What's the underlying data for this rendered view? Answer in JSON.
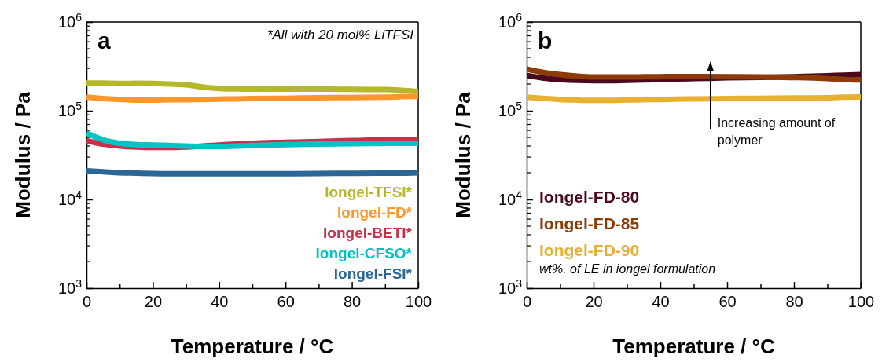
{
  "chart_data": [
    {
      "type": "line",
      "annotations": [
        "a",
        "*All with 20 mol% LiTFSI"
      ],
      "xlabel": "Temperature / °C",
      "ylabel": "Modulus / Pa",
      "xlim": [
        0,
        100
      ],
      "ylim": [
        1000,
        1000000
      ],
      "log": "y",
      "legend": "bottom right",
      "line_style": "solid",
      "marker": "none",
      "xticks": [
        0,
        {
          "value": 10,
          "label": null
        },
        20,
        {
          "value": 30,
          "label": null
        },
        40,
        {
          "value": 50,
          "label": null
        },
        60,
        {
          "value": 70,
          "label": null
        },
        80,
        {
          "value": 90,
          "label": null
        },
        100
      ],
      "yticks": [
        {
          "value": 1000,
          "label": "10$^{3}$"
        },
        {
          "value": 10000,
          "label": "10$^{4}$"
        },
        {
          "value": 100000,
          "label": "10$^{5}$"
        },
        {
          "value": 1000000,
          "label": "10$^{6}$"
        }
      ],
      "x": [
        0,
        5,
        10,
        15,
        20,
        25,
        30,
        35,
        40,
        45,
        50,
        60,
        70,
        80,
        90,
        95,
        100
      ],
      "series": [
        {
          "name": "Iongel-TFSI*",
          "color": "#b5b828",
          "values": [
            205000,
            205000,
            203000,
            204000,
            203000,
            200000,
            196000,
            185000,
            178000,
            176000,
            175000,
            175000,
            175000,
            174000,
            173000,
            170000,
            165000
          ]
        },
        {
          "name": "Iongel-FD*",
          "color": "#fd972d",
          "values": [
            142000,
            137000,
            134000,
            132000,
            132000,
            133000,
            133000,
            134000,
            135000,
            136000,
            137000,
            138000,
            140000,
            141000,
            142000,
            144000,
            145000
          ]
        },
        {
          "name": "Iongel-BETI*",
          "color": "#c8304a",
          "values": [
            46000,
            42000,
            40000,
            39000,
            38500,
            38500,
            39000,
            40000,
            41000,
            42000,
            43000,
            44000,
            45000,
            46000,
            47000,
            47000,
            47000
          ]
        },
        {
          "name": "Iongel-CFSO*",
          "color": "#00c4c4",
          "values": [
            56000,
            47000,
            43000,
            41500,
            41000,
            40500,
            40000,
            39500,
            39500,
            40000,
            40500,
            41500,
            42000,
            42500,
            43000,
            43000,
            43000
          ]
        },
        {
          "name": "Iongel-FSI*",
          "color": "#2c6697",
          "values": [
            21000,
            20500,
            20000,
            19800,
            19600,
            19500,
            19500,
            19500,
            19500,
            19500,
            19500,
            19500,
            19600,
            19700,
            19800,
            19800,
            20000
          ]
        }
      ]
    },
    {
      "type": "line",
      "annotations": [
        "b",
        "wt%. of LE in iongel formulation",
        "Increasing amount of polymer"
      ],
      "xlabel": "Temperature / °C",
      "ylabel": "Modulus / Pa",
      "xlim": [
        0,
        100
      ],
      "ylim": [
        1000,
        1000000
      ],
      "log": "y",
      "legend": "bottom left",
      "line_style": "solid",
      "marker": "none",
      "xticks": [
        0,
        {
          "value": 10,
          "label": null
        },
        20,
        {
          "value": 30,
          "label": null
        },
        40,
        {
          "value": 50,
          "label": null
        },
        60,
        {
          "value": 70,
          "label": null
        },
        80,
        {
          "value": 90,
          "label": null
        },
        100
      ],
      "yticks": [
        {
          "value": 1000,
          "label": "10$^{3}$"
        },
        {
          "value": 10000,
          "label": "10$^{4}$"
        },
        {
          "value": 100000,
          "label": "10$^{5}$"
        },
        {
          "value": 1000000,
          "label": "10$^{6}$"
        }
      ],
      "x": [
        0,
        5,
        10,
        15,
        20,
        25,
        30,
        35,
        40,
        45,
        50,
        60,
        70,
        80,
        90,
        95,
        100
      ],
      "series": [
        {
          "name": "Iongel-FD-80",
          "color": "#4a0a1e",
          "values": [
            250000,
            233000,
            225000,
            220000,
            218000,
            218000,
            220000,
            222000,
            225000,
            228000,
            230000,
            235000,
            238000,
            242000,
            248000,
            252000,
            255000
          ]
        },
        {
          "name": "Iongel-FD-85",
          "color": "#8c3a08",
          "values": [
            295000,
            270000,
            255000,
            245000,
            240000,
            240000,
            240000,
            241000,
            242000,
            243000,
            243000,
            242000,
            240000,
            237000,
            230000,
            225000,
            222000
          ]
        },
        {
          "name": "Iongel-FD-90",
          "color": "#e8b030",
          "values": [
            142000,
            138000,
            134000,
            132000,
            131000,
            131000,
            132000,
            133000,
            134000,
            135000,
            136000,
            137000,
            138000,
            139000,
            140000,
            142000,
            143000
          ]
        }
      ]
    }
  ]
}
